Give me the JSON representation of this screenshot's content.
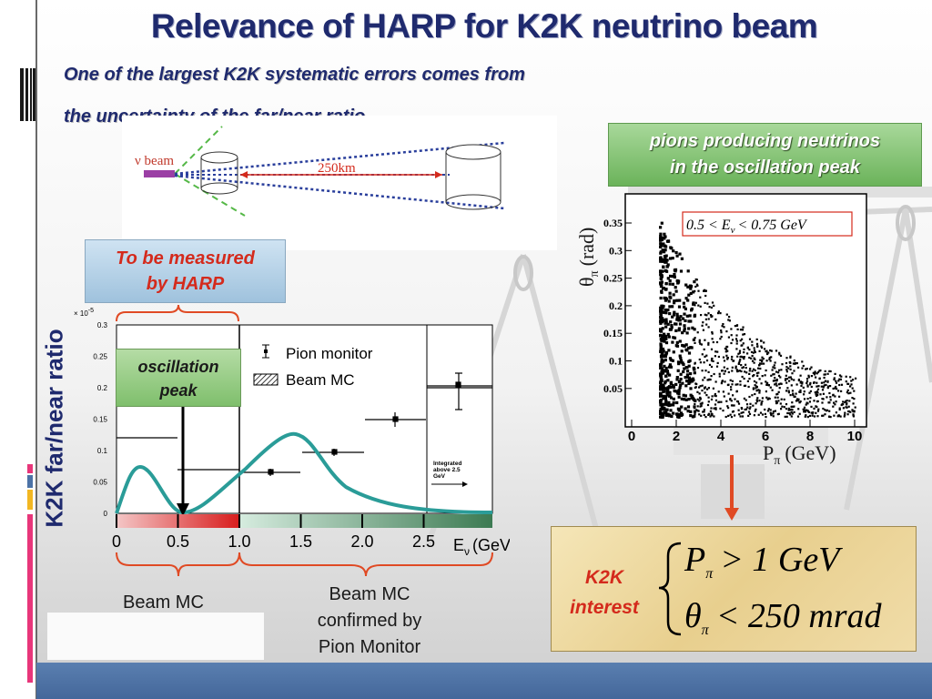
{
  "slide": {
    "title": "Relevance of HARP for K2K neutrino beam",
    "subtitle_line1": "One of the largest K2K systematic errors comes from",
    "subtitle_line2": "the uncertainty of the far/near ratio"
  },
  "beam_diagram": {
    "beam_label": "ν beam",
    "distance_label": "250km"
  },
  "callouts": {
    "pions_line1": "pions producing neutrinos",
    "pions_line2": "in the oscillation peak",
    "harp_line1": "To be measured",
    "harp_line2": "by HARP",
    "osc_line1": "oscillation",
    "osc_line2": "peak"
  },
  "ratio_plot": {
    "ylabel": "K2K far/near ratio",
    "y_exponent": "× 10",
    "y_exponent_power": "-5",
    "y_ticks": [
      "0.3",
      "0.25",
      "0.2",
      "0.15",
      "0.1",
      "0.05",
      "0"
    ],
    "x_ticks": [
      "0",
      "0.5",
      "1.0",
      "1.5",
      "2.0",
      "2.5"
    ],
    "xlabel_main": "E",
    "xlabel_sub": "ν",
    "xlabel_unit": "(GeV)",
    "legend_pion": "Pion monitor",
    "legend_mc": "Beam MC",
    "integrated_note_1": "Integrated",
    "integrated_note_2": "above 2.5",
    "integrated_note_3": "GeV",
    "brace_left_label": "Beam MC",
    "brace_right_line1": "Beam MC",
    "brace_right_line2": "confirmed by",
    "brace_right_line3": "Pion Monitor"
  },
  "scatter_plot": {
    "ylabel_main": "θ",
    "ylabel_sub": "π",
    "ylabel_unit": "(rad)",
    "xlabel_main": "P",
    "xlabel_sub": "π",
    "xlabel_unit": "(GeV)",
    "y_ticks": [
      "0.35",
      "0.3",
      "0.25",
      "0.2",
      "0.15",
      "0.1",
      "0.05"
    ],
    "x_ticks": [
      "0",
      "2",
      "4",
      "6",
      "8",
      "10"
    ],
    "cut_label_left": "0.5 < E",
    "cut_label_sub": "ν",
    "cut_label_right": "< 0.75 GeV"
  },
  "interest": {
    "label_line1": "K2K",
    "label_line2": "interest",
    "cond1_var": "P",
    "cond1_sub": "π",
    "cond1_rel": "> 1 GeV",
    "cond2_var": "θ",
    "cond2_sub": "π",
    "cond2_rel": "< 250 mrad"
  },
  "colors": {
    "title": "#1f2a6e",
    "accent_red": "#d42a1c",
    "curve_teal": "#2a9c98",
    "footer_blue": "#4c72a6"
  }
}
